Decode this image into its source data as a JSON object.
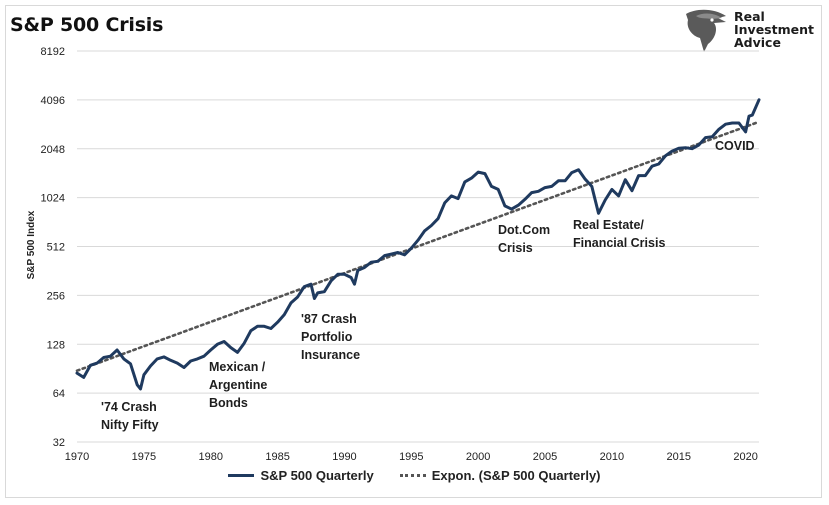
{
  "header": {
    "title": "S&P 500 Crisis"
  },
  "logo": {
    "line1": "Real",
    "line2": "Investment",
    "line3": "Advice",
    "icon": "eagle-head-icon"
  },
  "chart_data": {
    "type": "line",
    "ylabel": "S&P 500 Index",
    "xlabel": "",
    "y_scale": "log2",
    "ylim": [
      32,
      8192
    ],
    "xlim": [
      1970,
      2021
    ],
    "y_ticks": [
      "32",
      "64",
      "128",
      "256",
      "512",
      "1024",
      "2048",
      "4096",
      "8192"
    ],
    "x_ticks": [
      "1970",
      "1975",
      "1980",
      "1985",
      "1990",
      "1995",
      "2000",
      "2005",
      "2010",
      "2015",
      "2020"
    ],
    "grid": "horizontal",
    "legend_position": "bottom",
    "colors": {
      "series": "#1f3a5f",
      "trend": "#555555",
      "grid": "#d9d9d9"
    },
    "series": [
      {
        "name": "S&P 500 Quarterly",
        "x": [
          1970,
          1970.5,
          1971,
          1971.5,
          1972,
          1972.5,
          1973,
          1973.5,
          1974,
          1974.5,
          1974.75,
          1975,
          1975.5,
          1976,
          1976.5,
          1977,
          1977.5,
          1978,
          1978.5,
          1979,
          1979.5,
          1980,
          1980.5,
          1981,
          1981.5,
          1982,
          1982.5,
          1983,
          1983.5,
          1984,
          1984.5,
          1985,
          1985.5,
          1986,
          1986.5,
          1987,
          1987.5,
          1987.75,
          1988,
          1988.5,
          1989,
          1989.5,
          1990,
          1990.5,
          1990.75,
          1991,
          1991.5,
          1992,
          1992.5,
          1993,
          1993.5,
          1994,
          1994.5,
          1995,
          1995.5,
          1996,
          1996.5,
          1997,
          1997.5,
          1998,
          1998.5,
          1999,
          1999.5,
          2000,
          2000.5,
          2001,
          2001.5,
          2002,
          2002.5,
          2003,
          2003.5,
          2004,
          2004.5,
          2005,
          2005.5,
          2006,
          2006.5,
          2007,
          2007.5,
          2008,
          2008.5,
          2009,
          2009.5,
          2010,
          2010.5,
          2011,
          2011.5,
          2012,
          2012.5,
          2013,
          2013.5,
          2014,
          2014.5,
          2015,
          2015.5,
          2016,
          2016.5,
          2017,
          2017.5,
          2018,
          2018.5,
          2019,
          2019.5,
          2020,
          2020.25,
          2020.5,
          2021
        ],
        "values": [
          85,
          80,
          95,
          98,
          106,
          108,
          118,
          104,
          97,
          72,
          68,
          83,
          94,
          104,
          107,
          102,
          98,
          92,
          101,
          104,
          108,
          118,
          128,
          133,
          122,
          114,
          130,
          155,
          165,
          165,
          160,
          175,
          195,
          230,
          250,
          290,
          300,
          245,
          265,
          270,
          315,
          345,
          345,
          330,
          300,
          365,
          380,
          410,
          415,
          450,
          460,
          470,
          455,
          500,
          560,
          640,
          690,
          760,
          950,
          1050,
          1010,
          1280,
          1350,
          1470,
          1440,
          1200,
          1150,
          910,
          870,
          920,
          1000,
          1100,
          1120,
          1180,
          1200,
          1300,
          1300,
          1460,
          1520,
          1330,
          1200,
          820,
          990,
          1150,
          1050,
          1320,
          1130,
          1400,
          1400,
          1600,
          1650,
          1850,
          1980,
          2060,
          2080,
          2050,
          2160,
          2400,
          2430,
          2700,
          2900,
          2950,
          2950,
          2600,
          3250,
          3300,
          4100
        ]
      },
      {
        "name": "Expon. (S&P 500 Quarterly)",
        "x": [
          1970,
          2021
        ],
        "values": [
          88,
          3000
        ]
      }
    ],
    "annotations": [
      {
        "lines": [
          "'74 Crash",
          "Nifty Fifty"
        ]
      },
      {
        "lines": [
          "Mexican /",
          "Argentine",
          "Bonds"
        ]
      },
      {
        "lines": [
          "'87 Crash",
          "Portfolio",
          "Insurance"
        ]
      },
      {
        "lines": [
          "Dot.Com",
          "Crisis"
        ]
      },
      {
        "lines": [
          "Real Estate/",
          "Financial Crisis"
        ]
      },
      {
        "lines": [
          "COVID"
        ]
      }
    ]
  }
}
